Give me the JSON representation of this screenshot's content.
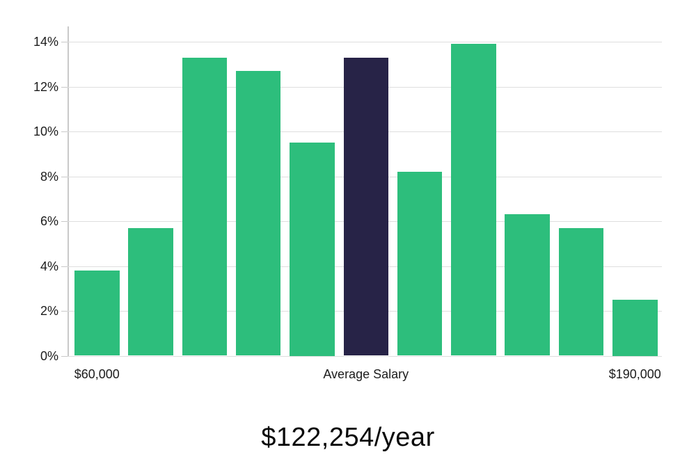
{
  "chart_data": {
    "type": "bar",
    "title": "",
    "subtitle": "$122,254/year",
    "xlabel": "",
    "ylabel": "",
    "ylim": [
      0,
      14
    ],
    "yticks": [
      0,
      2,
      4,
      6,
      8,
      10,
      12,
      14
    ],
    "ytick_suffix": "%",
    "grid": true,
    "legend": "none",
    "values": [
      3.8,
      5.7,
      13.3,
      12.7,
      9.5,
      13.3,
      8.2,
      13.9,
      6.3,
      5.7,
      2.5
    ],
    "highlight_index": 5,
    "bar_color": "#2dbe7c",
    "highlight_color": "#272347",
    "x_axis_labels": [
      {
        "bar_index": 0,
        "label": "$60,000"
      },
      {
        "bar_index": 5,
        "label": "Average Salary"
      },
      {
        "bar_index": 10,
        "label": "$190,000"
      }
    ]
  }
}
